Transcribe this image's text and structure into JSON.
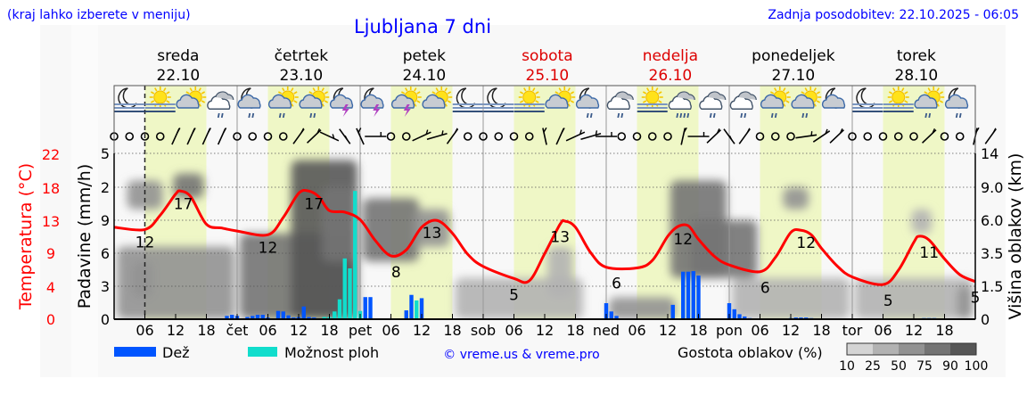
{
  "header": {
    "hint": "(kraj lahko izberete v meniju)",
    "title": "Ljubljana 7 dni",
    "updated": "Zadnja posodobitev: 22.10.2025 - 06:05"
  },
  "days": [
    {
      "name": "sreda",
      "date": "22.10",
      "weekend": false
    },
    {
      "name": "četrtek",
      "date": "23.10",
      "weekend": false
    },
    {
      "name": "petek",
      "date": "24.10",
      "weekend": false
    },
    {
      "name": "sobota",
      "date": "25.10",
      "weekend": true
    },
    {
      "name": "nedelja",
      "date": "26.10",
      "weekend": true
    },
    {
      "name": "ponedeljek",
      "date": "27.10",
      "weekend": false
    },
    {
      "name": "torek",
      "date": "28.10",
      "weekend": false
    }
  ],
  "x_ticks": [
    "06",
    "12",
    "18",
    "čet",
    "06",
    "12",
    "18",
    "pet",
    "06",
    "12",
    "18",
    "sob",
    "06",
    "12",
    "18",
    "ned",
    "06",
    "12",
    "18",
    "pon",
    "06",
    "12",
    "18",
    "tor",
    "06",
    "12",
    "18"
  ],
  "colors": {
    "temperature": "#ff0000",
    "rain": "#0055ff",
    "showers": "#11ddcc",
    "day_band": "#eff7c6",
    "text_blue": "#0000ff",
    "weekend": "#dd0000"
  },
  "weather_icons": [
    "moon-fog",
    "sun-fog",
    "sun-cloud",
    "cloud-rain",
    "moon-cloud-rain",
    "sun-cloud-rain",
    "sun-cloud-rain",
    "moon-thunder",
    "moon-thunder",
    "sun-thunder",
    "sun-cloud",
    "moon-fog",
    "moon-fog",
    "sun-fog",
    "sun-cloud",
    "moon-cloud-rain",
    "cloud-rain",
    "sun-fog",
    "cloud-heavy-rain",
    "cloud-rain",
    "cloud-rain",
    "sun-cloud-rain",
    "sun-cloud-rain",
    "moon-cloud",
    "moon-fog",
    "sun-fog",
    "sun-cloud-rain",
    "moon-cloud-rain"
  ],
  "wind": [
    "calm",
    "calm",
    "calm",
    "calm",
    200,
    200,
    200,
    200,
    "calm",
    "calm",
    "calm",
    "calm",
    210,
    220,
    300,
    330,
    160,
    270,
    "calm",
    "calm",
    240,
    250,
    210,
    "calm",
    "calm",
    "calm",
    "calm",
    "calm",
    170,
    200,
    240,
    250,
    270,
    "calm",
    "calm",
    "calm",
    "calm",
    190,
    270,
    220,
    330,
    210,
    "calm",
    "calm",
    "calm",
    260,
    230,
    220,
    "calm",
    "calm",
    "calm",
    "calm",
    "calm",
    220,
    "calm",
    "calm",
    190,
    210
  ],
  "legend": {
    "rain": "Dež",
    "showers": "Možnost ploh",
    "copyright": "© vreme.us & vreme.pro",
    "cloud_density": "Gostota oblakov (%)",
    "density_levels": [
      "10",
      "25",
      "50",
      "75",
      "90",
      "100"
    ],
    "density_colors": [
      "#d4d4d4",
      "#b2b2b2",
      "#929292",
      "#747474",
      "#565656"
    ]
  },
  "chart_data": {
    "type": "line",
    "axes": {
      "temperature": {
        "label": "Temperatura (°C)",
        "ticks": [
          "22",
          "18",
          "13",
          "9",
          "4",
          "0"
        ],
        "range": [
          0,
          22
        ]
      },
      "precipitation": {
        "label": "Padavine (mm/h)",
        "ticks": [
          "5",
          "2",
          "9",
          "6",
          "3",
          "0"
        ],
        "range": [
          0,
          15
        ]
      },
      "cloud_height": {
        "label": "Višina oblakov (km)",
        "ticks": [
          "14",
          "9.0",
          "6.0",
          "3.5",
          "1.5",
          "0"
        ],
        "values": [
          14,
          9,
          6,
          3.5,
          1.5,
          0
        ]
      }
    },
    "temperature": {
      "time": [
        "22.10 00:00",
        "22.10 06:00",
        "22.10 09:00",
        "22.10 12:00",
        "22.10 13:00",
        "22.10 15:00",
        "22.10 18:00",
        "22.10 21:00",
        "23.10 00:00",
        "23.10 06:00",
        "23.10 09:00",
        "23.10 12:00",
        "23.10 14:00",
        "23.10 16:00",
        "23.10 18:00",
        "23.10 21:00",
        "24.10 00:00",
        "24.10 03:00",
        "24.10 06:00",
        "24.10 09:00",
        "24.10 12:00",
        "24.10 15:00",
        "24.10 18:00",
        "24.10 21:00",
        "25.10 00:00",
        "25.10 06:00",
        "25.10 09:00",
        "25.10 12:00",
        "25.10 15:00",
        "25.10 16:00",
        "25.10 18:00",
        "25.10 21:00",
        "26.10 00:00",
        "26.10 06:00",
        "26.10 09:00",
        "26.10 12:00",
        "26.10 14:00",
        "26.10 16:00",
        "26.10 18:00",
        "26.10 21:00",
        "27.10 00:00",
        "27.10 06:00",
        "27.10 09:00",
        "27.10 12:00",
        "27.10 14:00",
        "27.10 16:00",
        "27.10 18:00",
        "27.10 21:00",
        "28.10 00:00",
        "28.10 06:00",
        "28.10 09:00",
        "28.10 12:00",
        "28.10 13:00",
        "28.10 15:00",
        "28.10 18:00",
        "28.10 21:00",
        "29.10 00:00"
      ],
      "values": [
        12.2,
        11.9,
        13.8,
        16.6,
        17,
        16.2,
        12.6,
        12.1,
        11.7,
        11.2,
        13.5,
        16.7,
        17,
        16.2,
        14.4,
        14.2,
        13.2,
        10.4,
        8.4,
        9.2,
        12.2,
        13.1,
        11.4,
        8.6,
        7,
        5.4,
        5.1,
        8.7,
        12.6,
        13,
        12.2,
        8.8,
        6.9,
        6.8,
        7.8,
        11,
        12.3,
        12.4,
        10.6,
        8.4,
        7.2,
        6.3,
        8.2,
        11.5,
        11.8,
        11.2,
        9.4,
        7.1,
        5.6,
        4.6,
        6.5,
        10.2,
        11,
        10.5,
        8,
        5.9,
        5
      ]
    },
    "temperature_labels": [
      {
        "time": "22.10 13:30",
        "value": "17"
      },
      {
        "time": "22.10 06:00",
        "value": "12"
      },
      {
        "time": "23.10 06:00",
        "value": "12"
      },
      {
        "time": "23.10 15:00",
        "value": "17"
      },
      {
        "time": "24.10 07:00",
        "value": "8"
      },
      {
        "time": "24.10 14:00",
        "value": "13"
      },
      {
        "time": "25.10 06:00",
        "value": "5"
      },
      {
        "time": "25.10 15:00",
        "value": "13"
      },
      {
        "time": "26.10 02:00",
        "value": "6"
      },
      {
        "time": "26.10 15:00",
        "value": "12"
      },
      {
        "time": "27.10 07:00",
        "value": "6"
      },
      {
        "time": "27.10 15:00",
        "value": "12"
      },
      {
        "time": "28.10 07:00",
        "value": "5"
      },
      {
        "time": "28.10 15:00",
        "value": "11"
      },
      {
        "time": "29.10 00:00",
        "value": "5"
      }
    ],
    "precipitation": [
      [
        "22.10 22:00",
        0.3,
        "rain"
      ],
      [
        "22.10 23:00",
        0.4,
        "rain"
      ],
      [
        "23.10 00:00",
        0.3,
        "rain"
      ],
      [
        "23.10 02:00",
        0.2,
        "rain"
      ],
      [
        "23.10 03:00",
        0.3,
        "rain"
      ],
      [
        "23.10 04:00",
        0.4,
        "rain"
      ],
      [
        "23.10 05:00",
        0.4,
        "rain"
      ],
      [
        "23.10 06:00",
        0.15,
        "rain"
      ],
      [
        "23.10 08:00",
        0.75,
        "rain"
      ],
      [
        "23.10 09:00",
        0.7,
        "rain"
      ],
      [
        "23.10 10:00",
        0.35,
        "rain"
      ],
      [
        "23.10 11:00",
        0.15,
        "rain"
      ],
      [
        "23.10 12:00",
        0.2,
        "rain"
      ],
      [
        "23.10 13:00",
        1.15,
        "rain"
      ],
      [
        "23.10 14:00",
        0.2,
        "rain"
      ],
      [
        "23.10 15:00",
        0.15,
        "rain"
      ],
      [
        "23.10 17:00",
        0.2,
        "showers"
      ],
      [
        "23.10 18:00",
        0.2,
        "showers"
      ],
      [
        "23.10 19:00",
        0.7,
        "showers"
      ],
      [
        "23.10 20:00",
        1.8,
        "showers"
      ],
      [
        "23.10 21:00",
        5.5,
        "showers"
      ],
      [
        "23.10 22:00",
        4.6,
        "showers"
      ],
      [
        "23.10 23:00",
        11.6,
        "showers"
      ],
      [
        "24.10 00:00",
        0.75,
        "showers"
      ],
      [
        "24.10 01:00",
        2.0,
        "rain"
      ],
      [
        "24.10 02:00",
        2.0,
        "rain"
      ],
      [
        "24.10 09:00",
        0.8,
        "rain"
      ],
      [
        "24.10 10:00",
        2.2,
        "rain"
      ],
      [
        "24.10 11:00",
        1.7,
        "showers"
      ],
      [
        "24.10 12:00",
        1.9,
        "rain"
      ],
      [
        "26.10 00:00",
        1.45,
        "rain"
      ],
      [
        "26.10 01:00",
        0.7,
        "rain"
      ],
      [
        "26.10 02:00",
        0.3,
        "rain"
      ],
      [
        "26.10 13:00",
        1.3,
        "rain"
      ],
      [
        "26.10 15:00",
        4.3,
        "rain"
      ],
      [
        "26.10 16:00",
        4.3,
        "rain"
      ],
      [
        "26.10 17:00",
        4.35,
        "rain"
      ],
      [
        "26.10 18:00",
        3.95,
        "rain"
      ],
      [
        "27.10 00:00",
        1.45,
        "rain"
      ],
      [
        "27.10 01:00",
        0.9,
        "rain"
      ],
      [
        "27.10 02:00",
        0.45,
        "rain"
      ],
      [
        "27.10 03:00",
        0.25,
        "rain"
      ],
      [
        "27.10 04:00",
        0.1,
        "rain"
      ],
      [
        "27.10 12:00",
        0.1,
        "rain"
      ],
      [
        "27.10 13:00",
        0.15,
        "rain"
      ],
      [
        "27.10 14:00",
        0.15,
        "rain"
      ],
      [
        "27.10 15:00",
        0.15,
        "rain"
      ],
      [
        "27.10 16:00",
        0.1,
        "rain"
      ],
      [
        "28.10 14:00",
        0.1,
        "rain"
      ],
      [
        "28.10 15:00",
        0.1,
        "rain"
      ],
      [
        "28.10 16:00",
        0.1,
        "rain"
      ]
    ],
    "cloud_density": [
      [
        "22.10 00:00",
        "23.10 00:00",
        0,
        4,
        60
      ],
      [
        "22.10 02:00",
        "22.10 10:00",
        7,
        10,
        55
      ],
      [
        "22.10 11:00",
        "22.10 18:00",
        8,
        11,
        80
      ],
      [
        "22.10 03:00",
        "22.10 08:00",
        1,
        3,
        50
      ],
      [
        "23.10 00:00",
        "24.10 00:00",
        0,
        5,
        75
      ],
      [
        "23.10 10:00",
        "24.10 00:00",
        0,
        13,
        90
      ],
      [
        "23.10 16:00",
        "24.10 00:00",
        3,
        9,
        85
      ],
      [
        "24.10 00:00",
        "24.10 12:00",
        3,
        8,
        80
      ],
      [
        "24.10 10:00",
        "24.10 18:00",
        4,
        7,
        60
      ],
      [
        "24.10 18:00",
        "25.10 20:00",
        0,
        2,
        40
      ],
      [
        "25.10 12:00",
        "25.10 18:00",
        1,
        4,
        35
      ],
      [
        "26.10 00:00",
        "26.10 14:00",
        0,
        1,
        55
      ],
      [
        "26.10 12:00",
        "27.10 00:00",
        2,
        10,
        85
      ],
      [
        "26.10 16:00",
        "27.10 06:00",
        2,
        6,
        75
      ],
      [
        "27.10 00:00",
        "28.10 00:00",
        0,
        2,
        40
      ],
      [
        "27.10 10:00",
        "27.10 16:00",
        7,
        9,
        60
      ],
      [
        "28.10 00:00",
        "29.10 00:00",
        0,
        2,
        30
      ],
      [
        "28.10 11:00",
        "28.10 16:00",
        5,
        7,
        40
      ],
      [
        "28.10 20:00",
        "29.10 00:00",
        0,
        1.5,
        55
      ]
    ],
    "current_time": "22.10 06:00",
    "grid": true
  }
}
